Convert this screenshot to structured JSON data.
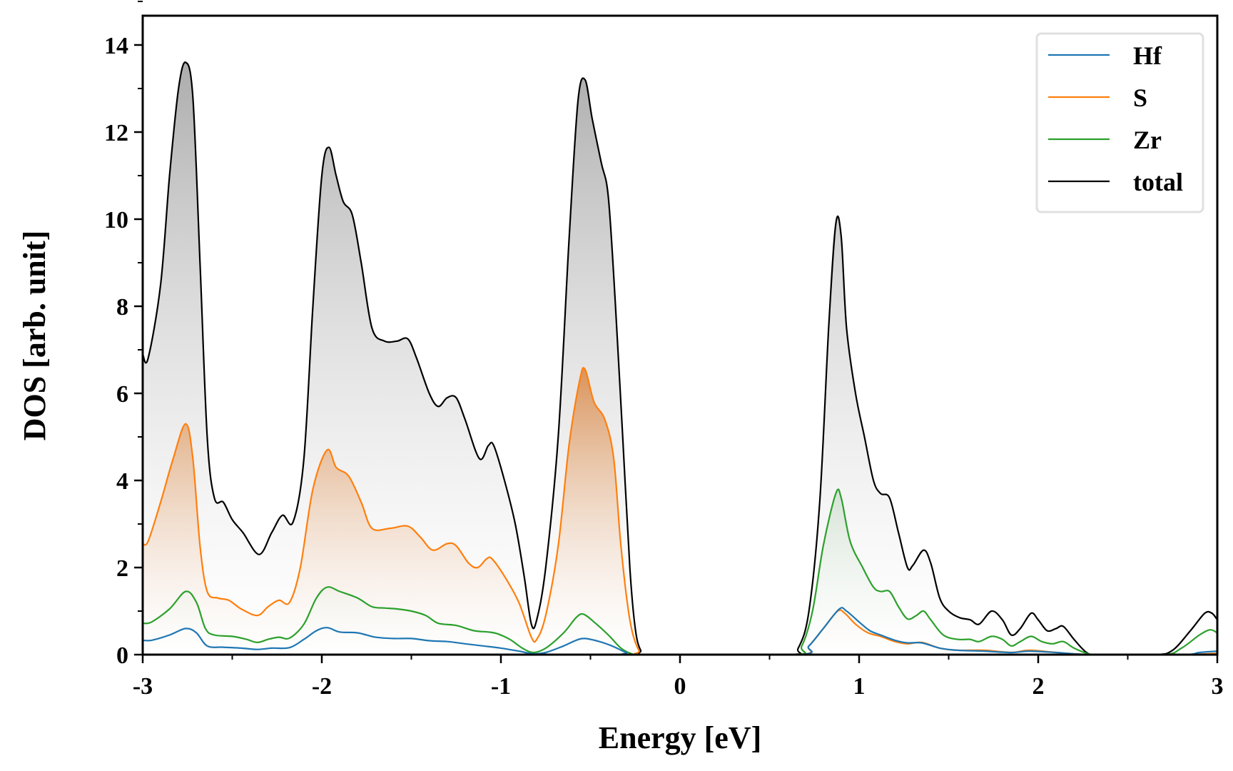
{
  "chart_data": {
    "type": "line",
    "title": "",
    "xlabel": "Energy [eV]",
    "ylabel": "DOS [arb. unit]",
    "xlim": [
      -3,
      3
    ],
    "ylim": [
      0,
      14.5
    ],
    "xticks": [
      "-3",
      "-2",
      "-1",
      "0",
      "1",
      "2",
      "3"
    ],
    "xtick_values": [
      -3,
      -2,
      -1,
      0,
      1,
      2,
      3
    ],
    "yticks": [
      "0",
      "2",
      "4",
      "6",
      "8",
      "10",
      "12",
      "14"
    ],
    "ytick_values": [
      0,
      2,
      4,
      6,
      8,
      10,
      12,
      14
    ],
    "grid": false,
    "legend_placement": "top-right",
    "series": [
      {
        "name": "Hf",
        "color": "#1f77b4",
        "fill": false,
        "points": [
          [
            -3,
            0.33
          ],
          [
            -2.95,
            0.33
          ],
          [
            -2.85,
            0.45
          ],
          [
            -2.76,
            0.6
          ],
          [
            -2.7,
            0.5
          ],
          [
            -2.64,
            0.2
          ],
          [
            -2.55,
            0.17
          ],
          [
            -2.45,
            0.15
          ],
          [
            -2.36,
            0.12
          ],
          [
            -2.28,
            0.15
          ],
          [
            -2.18,
            0.16
          ],
          [
            -2.1,
            0.35
          ],
          [
            -2.03,
            0.55
          ],
          [
            -1.97,
            0.62
          ],
          [
            -1.9,
            0.52
          ],
          [
            -1.8,
            0.5
          ],
          [
            -1.7,
            0.4
          ],
          [
            -1.6,
            0.37
          ],
          [
            -1.5,
            0.37
          ],
          [
            -1.4,
            0.32
          ],
          [
            -1.3,
            0.3
          ],
          [
            -1.2,
            0.25
          ],
          [
            -1.1,
            0.2
          ],
          [
            -1,
            0.15
          ],
          [
            -0.9,
            0.08
          ],
          [
            -0.82,
            0.02
          ],
          [
            -0.75,
            0.05
          ],
          [
            -0.65,
            0.2
          ],
          [
            -0.58,
            0.33
          ],
          [
            -0.53,
            0.37
          ],
          [
            -0.45,
            0.3
          ],
          [
            -0.38,
            0.2
          ],
          [
            -0.3,
            0.05
          ],
          [
            -0.24,
            0
          ],
          [
            0.65,
            0
          ],
          [
            0.72,
            0.2
          ],
          [
            0.8,
            0.6
          ],
          [
            0.89,
            1.05
          ],
          [
            0.93,
            1.0
          ],
          [
            1.0,
            0.75
          ],
          [
            1.06,
            0.55
          ],
          [
            1.12,
            0.45
          ],
          [
            1.2,
            0.33
          ],
          [
            1.27,
            0.27
          ],
          [
            1.35,
            0.27
          ],
          [
            1.45,
            0.15
          ],
          [
            1.55,
            0.1
          ],
          [
            1.7,
            0.08
          ],
          [
            1.85,
            0.05
          ],
          [
            1.95,
            0.08
          ],
          [
            2.1,
            0.05
          ],
          [
            2.3,
            0
          ],
          [
            2.8,
            0
          ],
          [
            2.9,
            0.05
          ],
          [
            3,
            0.08
          ]
        ]
      },
      {
        "name": "S",
        "color": "#ff7f0e",
        "fill": true,
        "points": [
          [
            -3,
            2.55
          ],
          [
            -2.97,
            2.6
          ],
          [
            -2.9,
            3.5
          ],
          [
            -2.83,
            4.5
          ],
          [
            -2.76,
            5.3
          ],
          [
            -2.72,
            4.5
          ],
          [
            -2.68,
            2.5
          ],
          [
            -2.64,
            1.45
          ],
          [
            -2.58,
            1.3
          ],
          [
            -2.52,
            1.25
          ],
          [
            -2.45,
            1.05
          ],
          [
            -2.36,
            0.9
          ],
          [
            -2.3,
            1.1
          ],
          [
            -2.24,
            1.25
          ],
          [
            -2.18,
            1.2
          ],
          [
            -2.12,
            2
          ],
          [
            -2.05,
            3.8
          ],
          [
            -1.97,
            4.7
          ],
          [
            -1.92,
            4.3
          ],
          [
            -1.85,
            4.1
          ],
          [
            -1.78,
            3.5
          ],
          [
            -1.72,
            2.9
          ],
          [
            -1.62,
            2.9
          ],
          [
            -1.52,
            2.95
          ],
          [
            -1.45,
            2.7
          ],
          [
            -1.38,
            2.4
          ],
          [
            -1.3,
            2.55
          ],
          [
            -1.25,
            2.5
          ],
          [
            -1.18,
            2.1
          ],
          [
            -1.13,
            2.0
          ],
          [
            -1.08,
            2.2
          ],
          [
            -1.05,
            2.2
          ],
          [
            -0.98,
            1.8
          ],
          [
            -0.9,
            1.2
          ],
          [
            -0.83,
            0.4
          ],
          [
            -0.8,
            0.35
          ],
          [
            -0.75,
            0.9
          ],
          [
            -0.68,
            2.5
          ],
          [
            -0.62,
            4.8
          ],
          [
            -0.56,
            6.3
          ],
          [
            -0.53,
            6.55
          ],
          [
            -0.48,
            5.8
          ],
          [
            -0.42,
            5.4
          ],
          [
            -0.37,
            4.5
          ],
          [
            -0.33,
            2.5
          ],
          [
            -0.28,
            0.8
          ],
          [
            -0.23,
            0.1
          ],
          [
            -0.18,
            0
          ],
          [
            0.65,
            0
          ],
          [
            0.72,
            0.2
          ],
          [
            0.8,
            0.6
          ],
          [
            0.88,
            1.0
          ],
          [
            0.92,
            0.95
          ],
          [
            0.98,
            0.7
          ],
          [
            1.05,
            0.5
          ],
          [
            1.12,
            0.42
          ],
          [
            1.2,
            0.3
          ],
          [
            1.27,
            0.25
          ],
          [
            1.35,
            0.28
          ],
          [
            1.45,
            0.15
          ],
          [
            1.55,
            0.1
          ],
          [
            1.7,
            0.1
          ],
          [
            1.85,
            0.05
          ],
          [
            1.95,
            0.1
          ],
          [
            2.1,
            0.05
          ],
          [
            2.3,
            0
          ],
          [
            2.8,
            0
          ],
          [
            3,
            0.03
          ]
        ]
      },
      {
        "name": "Zr",
        "color": "#2ca02c",
        "fill": true,
        "points": [
          [
            -3,
            0.72
          ],
          [
            -2.95,
            0.75
          ],
          [
            -2.85,
            1.05
          ],
          [
            -2.76,
            1.45
          ],
          [
            -2.7,
            1.2
          ],
          [
            -2.65,
            0.6
          ],
          [
            -2.6,
            0.45
          ],
          [
            -2.5,
            0.42
          ],
          [
            -2.42,
            0.35
          ],
          [
            -2.36,
            0.28
          ],
          [
            -2.3,
            0.35
          ],
          [
            -2.24,
            0.4
          ],
          [
            -2.18,
            0.38
          ],
          [
            -2.1,
            0.7
          ],
          [
            -2.03,
            1.3
          ],
          [
            -1.97,
            1.55
          ],
          [
            -1.9,
            1.45
          ],
          [
            -1.8,
            1.3
          ],
          [
            -1.72,
            1.1
          ],
          [
            -1.65,
            1.07
          ],
          [
            -1.58,
            1.05
          ],
          [
            -1.5,
            1.0
          ],
          [
            -1.42,
            0.9
          ],
          [
            -1.35,
            0.72
          ],
          [
            -1.25,
            0.67
          ],
          [
            -1.15,
            0.55
          ],
          [
            -1.07,
            0.52
          ],
          [
            -1.02,
            0.48
          ],
          [
            -0.95,
            0.35
          ],
          [
            -0.88,
            0.15
          ],
          [
            -0.82,
            0.05
          ],
          [
            -0.75,
            0.15
          ],
          [
            -0.65,
            0.5
          ],
          [
            -0.58,
            0.85
          ],
          [
            -0.54,
            0.93
          ],
          [
            -0.48,
            0.75
          ],
          [
            -0.4,
            0.45
          ],
          [
            -0.33,
            0.15
          ],
          [
            -0.27,
            0.02
          ],
          [
            -0.22,
            0
          ],
          [
            0.62,
            0
          ],
          [
            0.68,
            0.2
          ],
          [
            0.74,
            1
          ],
          [
            0.8,
            2.5
          ],
          [
            0.87,
            3.7
          ],
          [
            0.9,
            3.6
          ],
          [
            0.95,
            2.6
          ],
          [
            1.02,
            2
          ],
          [
            1.08,
            1.55
          ],
          [
            1.12,
            1.45
          ],
          [
            1.17,
            1.45
          ],
          [
            1.22,
            1.1
          ],
          [
            1.27,
            0.82
          ],
          [
            1.32,
            0.9
          ],
          [
            1.36,
            1.0
          ],
          [
            1.4,
            0.8
          ],
          [
            1.47,
            0.45
          ],
          [
            1.55,
            0.35
          ],
          [
            1.62,
            0.35
          ],
          [
            1.67,
            0.3
          ],
          [
            1.74,
            0.42
          ],
          [
            1.8,
            0.35
          ],
          [
            1.85,
            0.2
          ],
          [
            1.9,
            0.3
          ],
          [
            1.96,
            0.42
          ],
          [
            2.02,
            0.3
          ],
          [
            2.08,
            0.25
          ],
          [
            2.14,
            0.3
          ],
          [
            2.2,
            0.15
          ],
          [
            2.28,
            0.02
          ],
          [
            2.35,
            0
          ],
          [
            2.7,
            0
          ],
          [
            2.8,
            0.15
          ],
          [
            2.9,
            0.45
          ],
          [
            2.96,
            0.57
          ],
          [
            3,
            0.5
          ]
        ]
      },
      {
        "name": "total",
        "color": "#000000",
        "fill": true,
        "points": [
          [
            -3,
            6.9
          ],
          [
            -2.97,
            6.8
          ],
          [
            -2.9,
            8.5
          ],
          [
            -2.85,
            11
          ],
          [
            -2.8,
            13
          ],
          [
            -2.76,
            13.6
          ],
          [
            -2.72,
            12.8
          ],
          [
            -2.68,
            9
          ],
          [
            -2.64,
            5
          ],
          [
            -2.6,
            3.6
          ],
          [
            -2.55,
            3.5
          ],
          [
            -2.5,
            3.1
          ],
          [
            -2.44,
            2.8
          ],
          [
            -2.35,
            2.3
          ],
          [
            -2.28,
            2.8
          ],
          [
            -2.22,
            3.2
          ],
          [
            -2.16,
            3.05
          ],
          [
            -2.1,
            4.5
          ],
          [
            -2.05,
            8
          ],
          [
            -2.0,
            11
          ],
          [
            -1.96,
            11.65
          ],
          [
            -1.92,
            11
          ],
          [
            -1.88,
            10.4
          ],
          [
            -1.83,
            10.1
          ],
          [
            -1.78,
            9
          ],
          [
            -1.72,
            7.5
          ],
          [
            -1.65,
            7.2
          ],
          [
            -1.58,
            7.2
          ],
          [
            -1.52,
            7.25
          ],
          [
            -1.47,
            6.8
          ],
          [
            -1.4,
            6
          ],
          [
            -1.35,
            5.7
          ],
          [
            -1.3,
            5.9
          ],
          [
            -1.25,
            5.9
          ],
          [
            -1.2,
            5.4
          ],
          [
            -1.12,
            4.5
          ],
          [
            -1.07,
            4.8
          ],
          [
            -1.04,
            4.8
          ],
          [
            -0.98,
            4
          ],
          [
            -0.92,
            3
          ],
          [
            -0.87,
            1.8
          ],
          [
            -0.83,
            0.7
          ],
          [
            -0.8,
            0.8
          ],
          [
            -0.75,
            2
          ],
          [
            -0.68,
            5
          ],
          [
            -0.62,
            9.5
          ],
          [
            -0.57,
            12.7
          ],
          [
            -0.53,
            13.2
          ],
          [
            -0.49,
            12.3
          ],
          [
            -0.44,
            11.3
          ],
          [
            -0.4,
            10.5
          ],
          [
            -0.36,
            8
          ],
          [
            -0.32,
            5
          ],
          [
            -0.28,
            2
          ],
          [
            -0.25,
            0.6
          ],
          [
            -0.22,
            0.1
          ],
          [
            -0.18,
            0
          ],
          [
            0.6,
            0
          ],
          [
            0.66,
            0.15
          ],
          [
            0.72,
            1
          ],
          [
            0.78,
            3.5
          ],
          [
            0.83,
            7.5
          ],
          [
            0.87,
            9.9
          ],
          [
            0.9,
            9.6
          ],
          [
            0.93,
            7.5
          ],
          [
            0.98,
            6
          ],
          [
            1.03,
            5
          ],
          [
            1.08,
            4
          ],
          [
            1.12,
            3.7
          ],
          [
            1.17,
            3.6
          ],
          [
            1.22,
            2.8
          ],
          [
            1.27,
            2
          ],
          [
            1.3,
            2.05
          ],
          [
            1.36,
            2.4
          ],
          [
            1.4,
            2.1
          ],
          [
            1.45,
            1.3
          ],
          [
            1.5,
            1.0
          ],
          [
            1.56,
            0.85
          ],
          [
            1.62,
            0.8
          ],
          [
            1.67,
            0.7
          ],
          [
            1.74,
            1.0
          ],
          [
            1.8,
            0.8
          ],
          [
            1.85,
            0.45
          ],
          [
            1.9,
            0.6
          ],
          [
            1.96,
            0.95
          ],
          [
            2.0,
            0.8
          ],
          [
            2.05,
            0.55
          ],
          [
            2.1,
            0.6
          ],
          [
            2.14,
            0.65
          ],
          [
            2.2,
            0.35
          ],
          [
            2.27,
            0.05
          ],
          [
            2.33,
            0
          ],
          [
            2.65,
            0
          ],
          [
            2.75,
            0.1
          ],
          [
            2.85,
            0.55
          ],
          [
            2.93,
            0.95
          ],
          [
            2.97,
            0.95
          ],
          [
            3,
            0.8
          ]
        ]
      }
    ]
  }
}
